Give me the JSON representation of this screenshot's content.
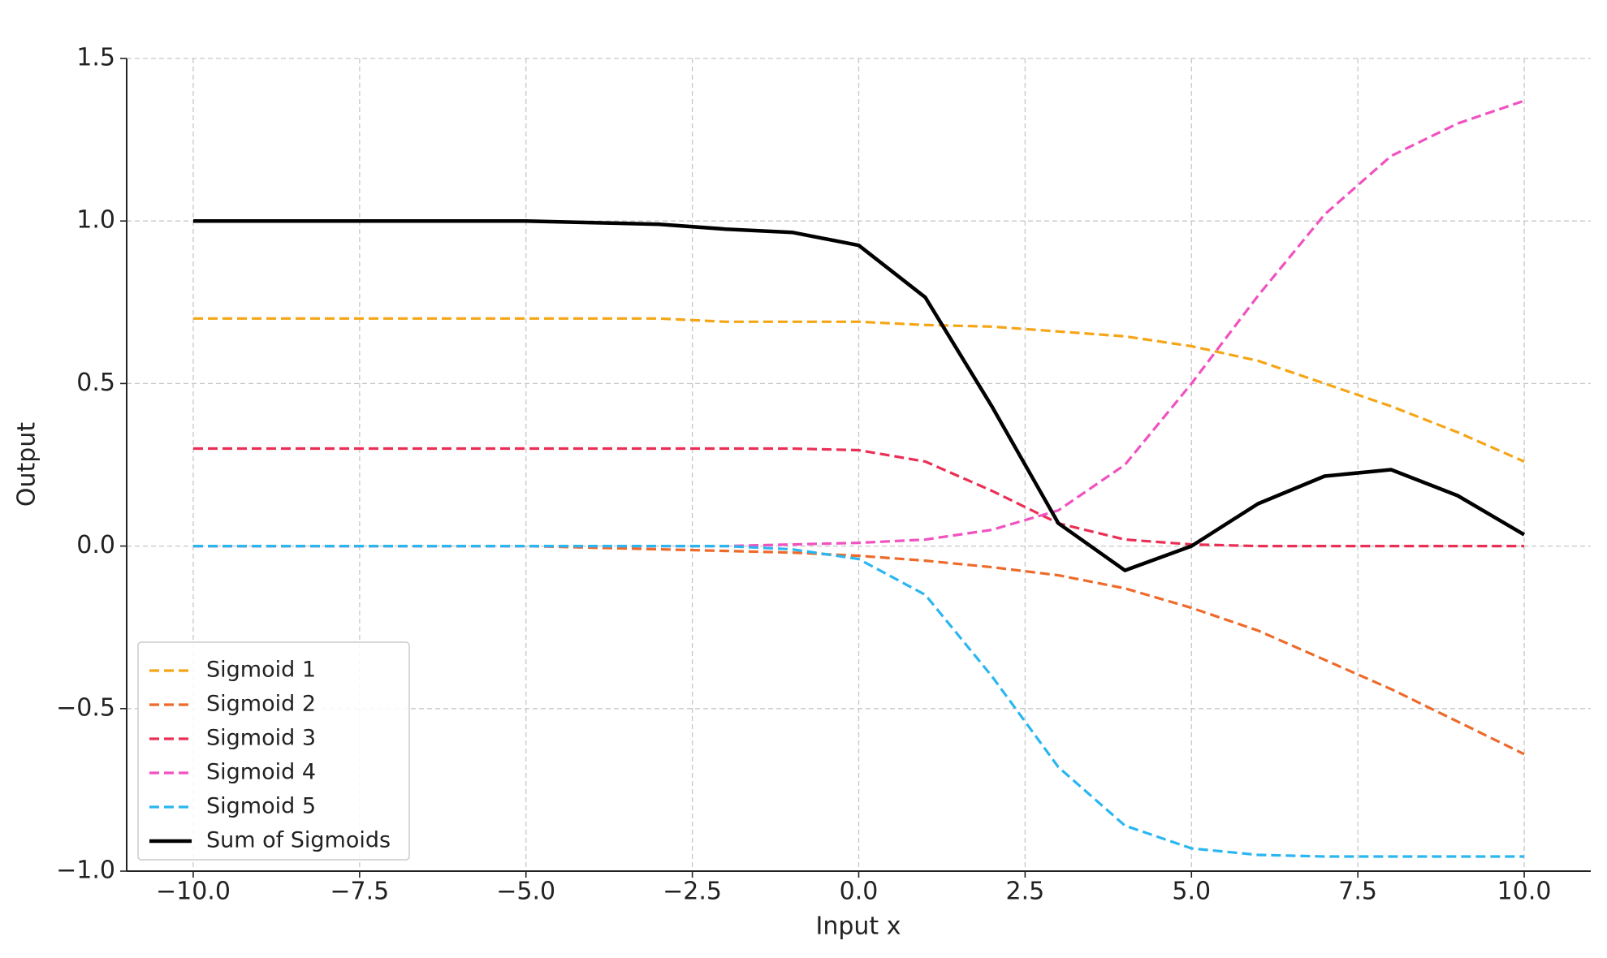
{
  "chart_data": {
    "type": "line",
    "xlabel": "Input x",
    "ylabel": "Output",
    "x": [
      -10,
      -9,
      -8,
      -7,
      -6,
      -5,
      -4,
      -3,
      -2,
      -1,
      0,
      1,
      2,
      3,
      4,
      5,
      6,
      7,
      8,
      9,
      10
    ],
    "series": [
      {
        "name": "Sigmoid 1",
        "color": "#f5a515",
        "linestyle": "dashed",
        "values": [
          0.7,
          0.7,
          0.7,
          0.7,
          0.7,
          0.7,
          0.7,
          0.7,
          0.69,
          0.69,
          0.69,
          0.68,
          0.675,
          0.66,
          0.645,
          0.615,
          0.57,
          0.5,
          0.43,
          0.35,
          0.26
        ]
      },
      {
        "name": "Sigmoid 2",
        "color": "#ee6a2a",
        "linestyle": "dashed",
        "values": [
          0,
          0,
          0,
          0,
          0,
          0,
          -0.005,
          -0.01,
          -0.015,
          -0.02,
          -0.03,
          -0.045,
          -0.065,
          -0.09,
          -0.13,
          -0.19,
          -0.26,
          -0.35,
          -0.44,
          -0.54,
          -0.64
        ]
      },
      {
        "name": "Sigmoid 3",
        "color": "#ea2f55",
        "linestyle": "dashed",
        "values": [
          0.3,
          0.3,
          0.3,
          0.3,
          0.3,
          0.3,
          0.3,
          0.3,
          0.3,
          0.3,
          0.295,
          0.26,
          0.17,
          0.07,
          0.02,
          0.005,
          0,
          0,
          0,
          0,
          0
        ]
      },
      {
        "name": "Sigmoid 4",
        "color": "#f052c0",
        "linestyle": "dashed",
        "values": [
          0,
          0,
          0,
          0,
          0,
          0,
          0,
          0,
          0,
          0.005,
          0.01,
          0.02,
          0.05,
          0.11,
          0.25,
          0.5,
          0.77,
          1.02,
          1.2,
          1.3,
          1.37
        ]
      },
      {
        "name": "Sigmoid 5",
        "color": "#2ab6f0",
        "linestyle": "dashed",
        "values": [
          0,
          0,
          0,
          0,
          0,
          0,
          0,
          0,
          0,
          -0.01,
          -0.04,
          -0.15,
          -0.4,
          -0.68,
          -0.86,
          -0.93,
          -0.95,
          -0.955,
          -0.955,
          -0.955,
          -0.955
        ]
      },
      {
        "name": "Sum of Sigmoids",
        "color": "#000000",
        "linestyle": "solid",
        "values": [
          1.0,
          1.0,
          1.0,
          1.0,
          1.0,
          1.0,
          0.995,
          0.99,
          0.975,
          0.965,
          0.925,
          0.765,
          0.43,
          0.07,
          -0.075,
          0.0,
          0.13,
          0.215,
          0.235,
          0.155,
          0.035
        ]
      }
    ],
    "xlim": [
      -11,
      11
    ],
    "ylim": [
      -1,
      1.5
    ],
    "xticks": [
      {
        "value": -10,
        "label": "−10.0"
      },
      {
        "value": -7.5,
        "label": "−7.5"
      },
      {
        "value": -5,
        "label": "−5.0"
      },
      {
        "value": -2.5,
        "label": "−2.5"
      },
      {
        "value": 0,
        "label": "0.0"
      },
      {
        "value": 2.5,
        "label": "2.5"
      },
      {
        "value": 5,
        "label": "5.0"
      },
      {
        "value": 7.5,
        "label": "7.5"
      },
      {
        "value": 10,
        "label": "10.0"
      }
    ],
    "yticks": [
      {
        "value": -1,
        "label": "−1.0"
      },
      {
        "value": -0.5,
        "label": "−0.5"
      },
      {
        "value": 0,
        "label": "0.0"
      },
      {
        "value": 0.5,
        "label": "0.5"
      },
      {
        "value": 1,
        "label": "1.0"
      },
      {
        "value": 1.5,
        "label": "1.5"
      }
    ],
    "grid": true,
    "legend": "lower left"
  }
}
